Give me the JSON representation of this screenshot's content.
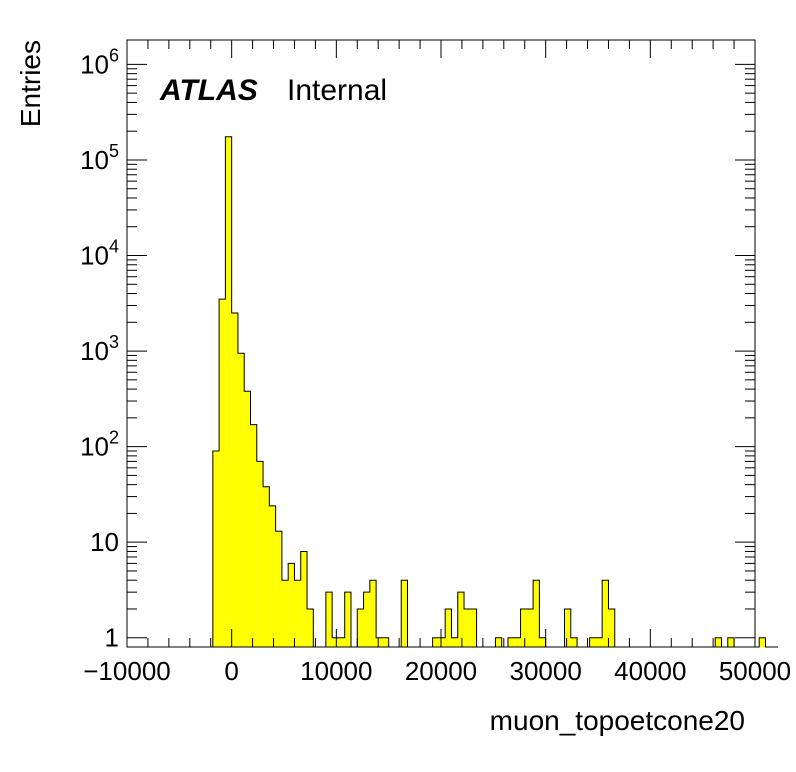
{
  "chart_data": {
    "type": "bar",
    "subtype": "histogram",
    "title": "",
    "brand": "ATLAS",
    "label": "Internal",
    "xlabel": "muon_topoetcone20",
    "ylabel": "Entries",
    "xlim": [
      -10000,
      50000
    ],
    "ylim": [
      0.8,
      1800000
    ],
    "yscale": "log",
    "x_ticks": [
      -10000,
      0,
      10000,
      20000,
      30000,
      40000,
      50000
    ],
    "x_tick_labels": [
      "−10000",
      "0",
      "10000",
      "20000",
      "30000",
      "40000",
      "50000"
    ],
    "y_ticks": [
      1,
      10,
      100,
      1000,
      10000,
      100000,
      1000000
    ],
    "y_tick_labels": [
      {
        "base": "1",
        "exp": ""
      },
      {
        "base": "10",
        "exp": ""
      },
      {
        "base": "10",
        "exp": "2"
      },
      {
        "base": "10",
        "exp": "3"
      },
      {
        "base": "10",
        "exp": "4"
      },
      {
        "base": "10",
        "exp": "5"
      },
      {
        "base": "10",
        "exp": "6"
      }
    ],
    "fill_color": "#ffff00",
    "line_color": "#000000",
    "grid": false,
    "bin_width": 600,
    "bin_edges_start": -1800,
    "values": [
      90,
      3500,
      175000,
      2500,
      950,
      380,
      170,
      70,
      38,
      24,
      13,
      4,
      6,
      4,
      8,
      2,
      0,
      0,
      3,
      1,
      1,
      3,
      0,
      2,
      3,
      4,
      1,
      1,
      0,
      0,
      4,
      0,
      0,
      0,
      0,
      1,
      1,
      2,
      1,
      3,
      2,
      2,
      0,
      0,
      0,
      1,
      0,
      1,
      1,
      2,
      2,
      4,
      1,
      0,
      0,
      0,
      2,
      1,
      0,
      0,
      1,
      1,
      4,
      2,
      0,
      0,
      0,
      0,
      0,
      0,
      0,
      0,
      0,
      0,
      0,
      0,
      0,
      0,
      0,
      0,
      1,
      0,
      1,
      0,
      0,
      0,
      0,
      1,
      0,
      0
    ]
  }
}
